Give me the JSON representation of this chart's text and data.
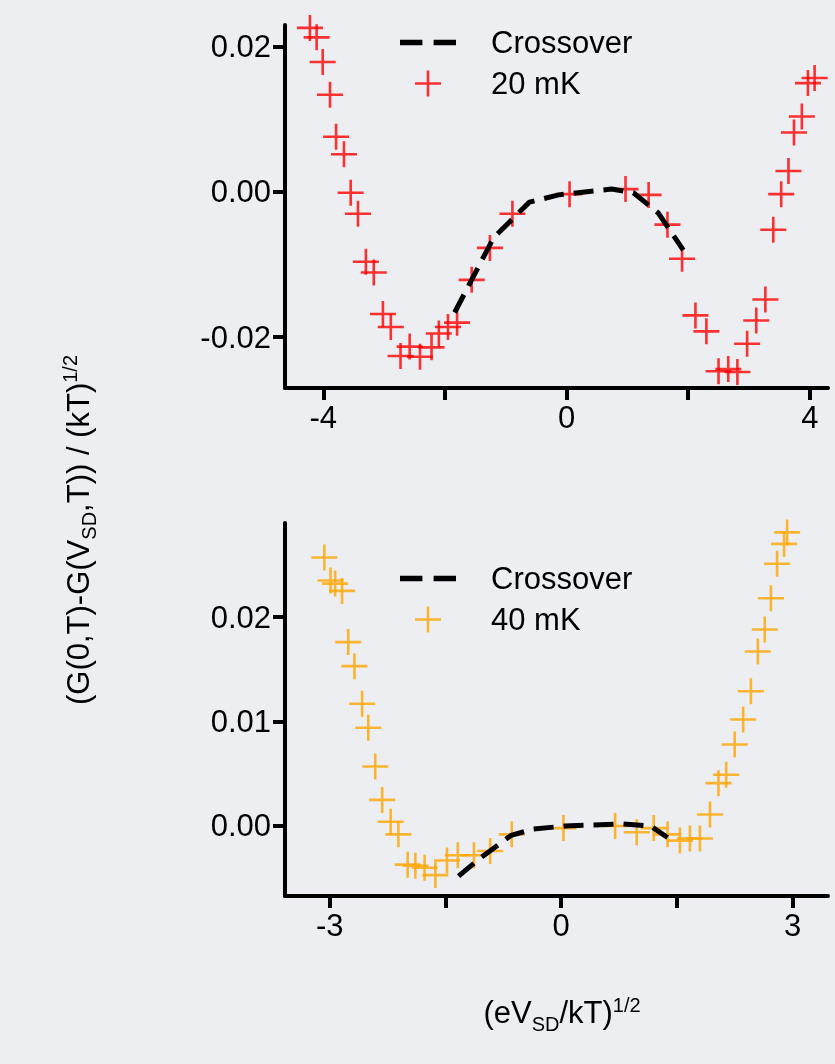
{
  "chart_data": [
    {
      "type": "scatter",
      "ylabel": "(G(0,T)-G(V$_{SD}$,T)) / (kT)$^{1/2}$",
      "xlim": [
        -4.63,
        4.3
      ],
      "xticks": [
        -4,
        {
          "value": -2,
          "label": null
        },
        0,
        {
          "value": 2,
          "label": null
        },
        4
      ],
      "ylim": [
        -0.027,
        0.023
      ],
      "yticks": [
        {
          "value": -0.02,
          "label": "-0.02"
        },
        {
          "value": 0,
          "label": "0.00"
        },
        {
          "value": 0.02,
          "label": "0.02"
        }
      ],
      "grid": false,
      "legend": "top",
      "series": [
        {
          "name": "Crossover",
          "type": "line",
          "line_style": "dashed",
          "marker": "none",
          "color": "#000000",
          "x": [
            -1.84,
            -1.56,
            -1.2,
            -0.61,
            -0.13,
            0.74,
            1.1,
            1.51,
            1.92
          ],
          "values": [
            -0.0166,
            -0.0121,
            -0.0063,
            -0.0014,
            -0.0004,
            0.0004,
            -0.0001,
            -0.0029,
            -0.008
          ]
        },
        {
          "name": "20 mK",
          "type": "scatter",
          "marker": "cross",
          "color": "#ff0000",
          "x": [
            -4.22,
            -4.11,
            -4.01,
            -3.89,
            -3.79,
            -3.66,
            -3.55,
            -3.43,
            -3.3,
            -3.17,
            -3.02,
            -2.89,
            -2.73,
            -2.58,
            -2.41,
            -2.22,
            -2.1,
            -1.95,
            -1.8,
            -1.56,
            -1.26,
            -0.89,
            0.05,
            0.97,
            1.35,
            1.66,
            1.9,
            2.12,
            2.3,
            2.5,
            2.66,
            2.81,
            2.97,
            3.12,
            3.27,
            3.4,
            3.53,
            3.65,
            3.74,
            3.87,
            3.97,
            4.08
          ],
          "values": [
            0.0226,
            0.0213,
            0.0179,
            0.0134,
            0.0076,
            0.0052,
            -0.0001,
            -0.003,
            -0.0096,
            -0.0111,
            -0.0168,
            -0.0186,
            -0.0226,
            -0.0213,
            -0.0227,
            -0.0214,
            -0.0195,
            -0.0186,
            -0.018,
            -0.0121,
            -0.0077,
            -0.003,
            -0.0003,
            0.0004,
            -0.0004,
            -0.0045,
            -0.0092,
            -0.017,
            -0.0192,
            -0.0247,
            -0.0244,
            -0.0248,
            -0.0209,
            -0.0177,
            -0.0148,
            -0.0052,
            -0.0003,
            0.0029,
            0.0082,
            0.0104,
            0.015,
            0.0157
          ]
        }
      ]
    },
    {
      "type": "scatter",
      "xlabel": "(eV$_{SD}$/kT)$^{1/2}$",
      "xlim": [
        -3.58,
        3.46
      ],
      "xticks": [
        -3,
        {
          "value": -1.5,
          "label": null
        },
        0,
        {
          "value": 1.5,
          "label": null
        },
        3
      ],
      "ylim": [
        -0.0067,
        0.029
      ],
      "yticks": [
        {
          "value": 0,
          "label": "0.00"
        },
        {
          "value": 0.01,
          "label": "0.01"
        },
        {
          "value": 0.02,
          "label": "0.02"
        }
      ],
      "grid": false,
      "legend": "top",
      "series": [
        {
          "name": "Crossover",
          "type": "line",
          "line_style": "dashed",
          "marker": "none",
          "color": "#000000",
          "x": [
            -1.33,
            -1.07,
            -0.65,
            -0.36,
            0.05,
            0.79,
            1.16,
            1.38
          ],
          "values": [
            -0.0048,
            -0.0032,
            -0.0009,
            -0.0003,
            0,
            0.0002,
            0,
            -0.0011
          ]
        },
        {
          "name": "40 mK",
          "type": "scatter",
          "marker": "cross",
          "color": "#ffa500",
          "x": [
            -3.07,
            -2.99,
            -2.93,
            -2.84,
            -2.76,
            -2.68,
            -2.58,
            -2.5,
            -2.41,
            -2.32,
            -2.21,
            -2.11,
            -1.99,
            -1.89,
            -1.77,
            -1.63,
            -1.48,
            -1.34,
            -1.13,
            -0.92,
            -0.64,
            0.03,
            0.7,
            0.98,
            1.2,
            1.38,
            1.54,
            1.67,
            1.8,
            1.93,
            2.04,
            2.14,
            2.25,
            2.36,
            2.46,
            2.55,
            2.64,
            2.72,
            2.8,
            2.89,
            2.93
          ],
          "values": [
            0.0257,
            0.0235,
            0.0232,
            0.0225,
            0.0176,
            0.0153,
            0.0117,
            0.0094,
            0.0057,
            0.0025,
            0.0004,
            -0.0008,
            -0.0037,
            -0.0038,
            -0.004,
            -0.0047,
            -0.0033,
            -0.0028,
            -0.0028,
            -0.0024,
            -0.0008,
            -0.0002,
            0,
            -0.0006,
            -0.0002,
            -0.0008,
            -0.0014,
            -0.0012,
            -0.0012,
            0.0011,
            0.0041,
            0.0049,
            0.0078,
            0.0102,
            0.0129,
            0.0167,
            0.0188,
            0.0218,
            0.0251,
            0.027,
            0.0281
          ]
        }
      ]
    }
  ]
}
